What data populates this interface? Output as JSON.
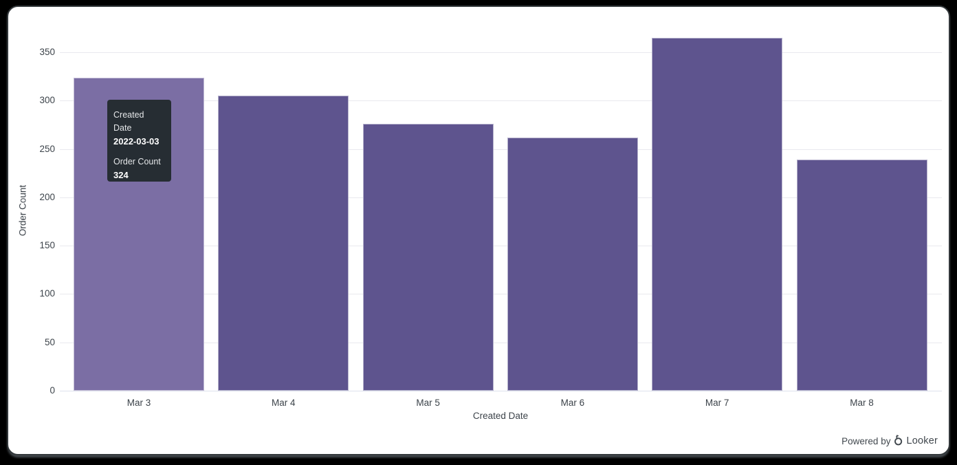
{
  "chart_data": {
    "type": "bar",
    "title": "",
    "categories": [
      "Mar 3",
      "Mar 4",
      "Mar 5",
      "Mar 6",
      "Mar 7",
      "Mar 8"
    ],
    "values": [
      324,
      305,
      276,
      262,
      365,
      239
    ],
    "series": [
      {
        "name": "Order Count",
        "values": [
          324,
          305,
          276,
          262,
          365,
          239
        ]
      }
    ],
    "xlabel": "Created Date",
    "ylabel": "Order Count",
    "ylim": [
      0,
      350
    ],
    "yticks": [
      0,
      50,
      100,
      150,
      200,
      250,
      300,
      350
    ],
    "grid": "horizontal gridlines only",
    "legend": "none",
    "hovered_index": 0,
    "colors": {
      "bar": "#5e548e",
      "bar_hovered": "#7b6ea4",
      "bar_border": "rgba(255,255,255,0.55)",
      "gridline": "#e9e9ee",
      "zero_line": "#dde1ec",
      "axis_text": "#3c434a",
      "card_background": "#ffffff",
      "page_background": "#000000"
    }
  },
  "tooltip": {
    "dimension_label": "Created Date",
    "dimension_value": "2022-03-03",
    "measure_label": "Order Count",
    "measure_value": "324",
    "background": "#262d33"
  },
  "footer": {
    "powered_by": "Powered by",
    "brand": "Looker"
  }
}
